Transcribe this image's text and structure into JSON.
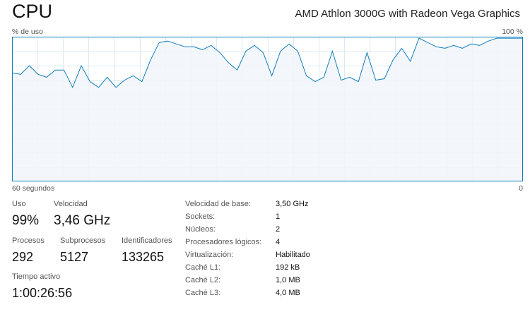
{
  "header": {
    "title": "CPU",
    "processor_name": "AMD Athlon 3000G with Radeon Vega Graphics"
  },
  "graph": {
    "y_label": "% de uso",
    "y_max_label": "100 %",
    "x_left_label": "60 segundos",
    "x_right_label": "0",
    "line_color": "#117dbb",
    "fill_color": "#f1f6fa",
    "border_color": "#117dbb",
    "grid_color": "#d9eaf4"
  },
  "chart_data": {
    "type": "area",
    "xlabel": "60 segundos",
    "ylabel": "% de uso",
    "ylim": [
      0,
      100
    ],
    "xlim": [
      60,
      0
    ],
    "grid": true,
    "series": [
      {
        "values": [
          75,
          74,
          80,
          74,
          72,
          77,
          77,
          65,
          80,
          69,
          65,
          72,
          65,
          70,
          73,
          69,
          84,
          96,
          97,
          95,
          93,
          93,
          91,
          94,
          89,
          82,
          77,
          90,
          94,
          89,
          73,
          90,
          95,
          90,
          73,
          69,
          72,
          90,
          70,
          72,
          69,
          89,
          70,
          71,
          84,
          92,
          83,
          99,
          96,
          93,
          92,
          94,
          92,
          95,
          94,
          97,
          99,
          99,
          99,
          99
        ]
      }
    ]
  },
  "stats": {
    "usage": {
      "label": "Uso",
      "value": "99%"
    },
    "speed": {
      "label": "Velocidad",
      "value": "3,46 GHz"
    },
    "processes": {
      "label": "Procesos",
      "value": "292"
    },
    "threads": {
      "label": "Subprocesos",
      "value": "5127"
    },
    "handles": {
      "label": "Identificadores",
      "value": "133265"
    },
    "uptime": {
      "label": "Tiempo activo",
      "value": "1:00:26:56"
    }
  },
  "specs": [
    {
      "label": "Velocidad de base:",
      "value": "3,50 GHz"
    },
    {
      "label": "Sockets:",
      "value": "1"
    },
    {
      "label": "Núcleos:",
      "value": "2"
    },
    {
      "label": "Procesadores lógicos:",
      "value": "4"
    },
    {
      "label": "Virtualización:",
      "value": "Habilitado"
    },
    {
      "label": "Caché L1:",
      "value": "192 kB"
    },
    {
      "label": "Caché L2:",
      "value": "1,0 MB"
    },
    {
      "label": "Caché L3:",
      "value": "4,0 MB"
    }
  ]
}
